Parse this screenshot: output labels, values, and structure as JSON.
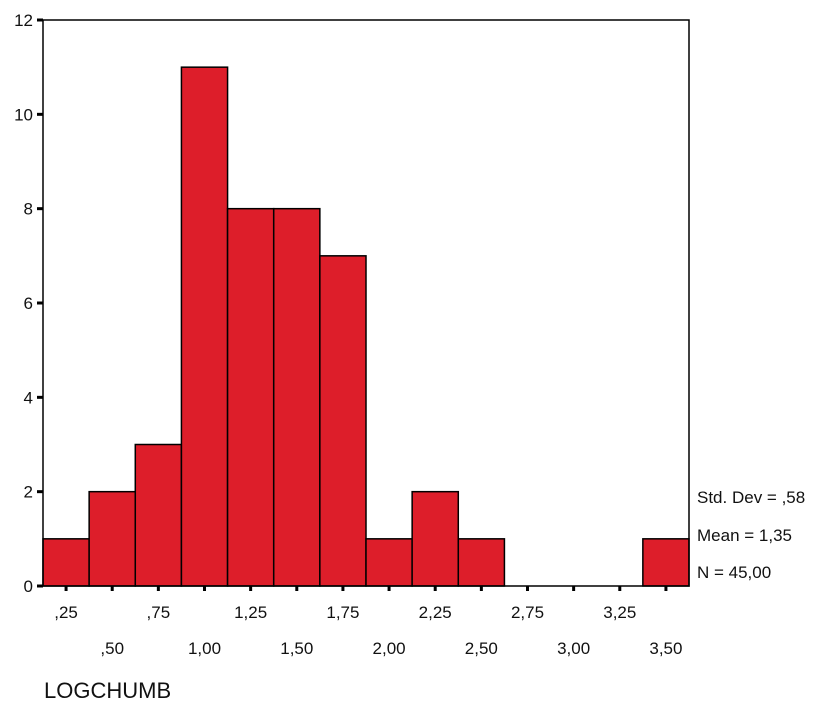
{
  "chart_data": {
    "type": "bar",
    "subtype": "histogram",
    "bins": [
      {
        "center": 0.25,
        "count": 1
      },
      {
        "center": 0.5,
        "count": 2
      },
      {
        "center": 0.75,
        "count": 3
      },
      {
        "center": 1.0,
        "count": 11
      },
      {
        "center": 1.25,
        "count": 8
      },
      {
        "center": 1.5,
        "count": 8
      },
      {
        "center": 1.75,
        "count": 7
      },
      {
        "center": 2.0,
        "count": 1
      },
      {
        "center": 2.25,
        "count": 2
      },
      {
        "center": 2.5,
        "count": 1
      },
      {
        "center": 2.75,
        "count": 0
      },
      {
        "center": 3.0,
        "count": 0
      },
      {
        "center": 3.25,
        "count": 0
      },
      {
        "center": 3.5,
        "count": 1
      }
    ],
    "bin_width": 0.25,
    "x_tick_labels": [
      ",25",
      ",50",
      ",75",
      "1,00",
      "1,25",
      "1,50",
      "1,75",
      "2,00",
      "2,25",
      "2,50",
      "2,75",
      "3,00",
      "3,25",
      "3,50"
    ],
    "y_ticks": [
      0,
      2,
      4,
      6,
      8,
      10,
      12
    ],
    "ylim": [
      0,
      12
    ],
    "xlabel": "LOGCHUMB",
    "ylabel": "",
    "title": "",
    "bar_color": "#dd1e2a",
    "grid": false,
    "stats": {
      "std_dev": "Std. Dev = ,58",
      "mean": "Mean = 1,35",
      "n": "N = 45,00"
    }
  }
}
